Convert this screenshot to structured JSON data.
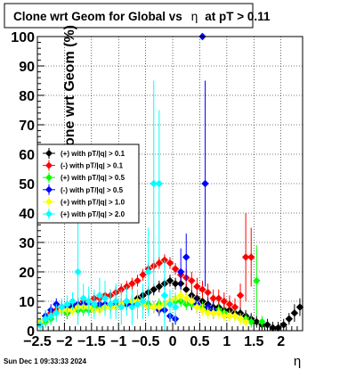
{
  "chart_data": {
    "type": "scatter",
    "title": "Clone wrt Geom for Global vs",
    "title_symbol": "η",
    "title_suffix": "at pT > 0.11",
    "xlabel": "η",
    "ylabel": "Clone wrt Geom (%)",
    "xlim": [
      -2.5,
      2.4
    ],
    "ylim": [
      0,
      100
    ],
    "x_ticks": [
      {
        "value": -2.5,
        "label": "−2.5"
      },
      {
        "value": -2,
        "label": "−2"
      },
      {
        "value": -1.5,
        "label": "−1.5"
      },
      {
        "value": -1,
        "label": "−1"
      },
      {
        "value": -0.5,
        "label": "−0.5"
      },
      {
        "value": 0,
        "label": "0"
      },
      {
        "value": 0.5,
        "label": "0.5"
      },
      {
        "value": 1,
        "label": "1"
      },
      {
        "value": 1.5,
        "label": "1.5"
      },
      {
        "value": 2,
        "label": "2"
      }
    ],
    "y_ticks": [
      {
        "value": 0,
        "label": "0"
      },
      {
        "value": 10,
        "label": "10"
      },
      {
        "value": 20,
        "label": "20"
      },
      {
        "value": 30,
        "label": "30"
      },
      {
        "value": 40,
        "label": "40"
      },
      {
        "value": 50,
        "label": "50"
      },
      {
        "value": 60,
        "label": "60"
      },
      {
        "value": 70,
        "label": "70"
      },
      {
        "value": 80,
        "label": "80"
      },
      {
        "value": 90,
        "label": "90"
      },
      {
        "value": 100,
        "label": "100"
      }
    ],
    "grid": true,
    "legend_position": "middle-left",
    "series": [
      {
        "name": "(+) with pT/|q| > 0.1",
        "color": "#000000",
        "points": [
          [
            -2.45,
            2,
            1.5
          ],
          [
            -2.35,
            4,
            2
          ],
          [
            -2.25,
            5,
            2
          ],
          [
            -2.15,
            7,
            2
          ],
          [
            -2.05,
            7,
            2
          ],
          [
            -1.95,
            6,
            2
          ],
          [
            -1.85,
            8,
            2
          ],
          [
            -1.75,
            7,
            2
          ],
          [
            -1.65,
            8,
            2
          ],
          [
            -1.55,
            8,
            2
          ],
          [
            -1.45,
            8,
            2
          ],
          [
            -1.35,
            8,
            2
          ],
          [
            -1.25,
            8,
            2
          ],
          [
            -1.15,
            8,
            2
          ],
          [
            -1.05,
            9,
            2
          ],
          [
            -0.95,
            9,
            2
          ],
          [
            -0.85,
            10,
            2
          ],
          [
            -0.75,
            10,
            2
          ],
          [
            -0.65,
            11,
            2
          ],
          [
            -0.55,
            12,
            2
          ],
          [
            -0.45,
            13,
            2
          ],
          [
            -0.35,
            14,
            2
          ],
          [
            -0.25,
            15,
            2
          ],
          [
            -0.15,
            16,
            2
          ],
          [
            -0.05,
            17,
            2
          ],
          [
            0.05,
            16,
            2
          ],
          [
            0.15,
            16,
            2
          ],
          [
            0.25,
            14,
            2
          ],
          [
            0.35,
            12,
            2
          ],
          [
            0.45,
            11,
            2
          ],
          [
            0.55,
            10,
            2
          ],
          [
            0.65,
            9,
            2
          ],
          [
            0.75,
            8,
            2
          ],
          [
            0.85,
            8,
            2
          ],
          [
            0.95,
            7,
            2
          ],
          [
            1.05,
            7,
            2
          ],
          [
            1.15,
            6,
            2
          ],
          [
            1.25,
            6,
            2
          ],
          [
            1.35,
            5,
            2
          ],
          [
            1.45,
            4,
            2
          ],
          [
            1.55,
            3,
            2
          ],
          [
            1.65,
            2,
            2
          ],
          [
            1.75,
            2,
            2
          ],
          [
            1.85,
            1,
            2
          ],
          [
            1.95,
            1,
            2
          ],
          [
            2.05,
            2,
            2
          ],
          [
            2.15,
            4,
            2
          ],
          [
            2.25,
            6,
            3
          ],
          [
            2.35,
            8,
            3
          ]
        ]
      },
      {
        "name": "(-) with pT/|q| > 0.1",
        "color": "#ff0000",
        "points": [
          [
            -2.45,
            3,
            2
          ],
          [
            -2.35,
            5,
            2
          ],
          [
            -2.25,
            6,
            2
          ],
          [
            -2.15,
            7,
            2
          ],
          [
            -2.05,
            8,
            2
          ],
          [
            -1.95,
            8,
            2
          ],
          [
            -1.85,
            9,
            2
          ],
          [
            -1.75,
            9,
            2
          ],
          [
            -1.65,
            10,
            2
          ],
          [
            -1.55,
            10,
            2
          ],
          [
            -1.45,
            11,
            2
          ],
          [
            -1.35,
            11,
            2
          ],
          [
            -1.25,
            12,
            2
          ],
          [
            -1.15,
            12,
            2
          ],
          [
            -1.05,
            13,
            2
          ],
          [
            -0.95,
            14,
            2
          ],
          [
            -0.85,
            15,
            2
          ],
          [
            -0.75,
            16,
            2
          ],
          [
            -0.65,
            17,
            2
          ],
          [
            -0.55,
            19,
            2
          ],
          [
            -0.45,
            21,
            2
          ],
          [
            -0.35,
            22,
            2
          ],
          [
            -0.25,
            23,
            2
          ],
          [
            -0.15,
            24,
            2
          ],
          [
            -0.05,
            23,
            2
          ],
          [
            0.05,
            21,
            2
          ],
          [
            0.15,
            19,
            2
          ],
          [
            0.25,
            18,
            3
          ],
          [
            0.35,
            17,
            3
          ],
          [
            0.45,
            15,
            3
          ],
          [
            0.55,
            14,
            3
          ],
          [
            0.65,
            13,
            3
          ],
          [
            0.75,
            11,
            3
          ],
          [
            0.85,
            11,
            3
          ],
          [
            0.95,
            10,
            3
          ],
          [
            1.05,
            9,
            3
          ],
          [
            1.15,
            8,
            3
          ],
          [
            1.25,
            12,
            4
          ],
          [
            1.35,
            25,
            15
          ],
          [
            1.45,
            25,
            10
          ]
        ]
      },
      {
        "name": "(+) with pT/|q| > 0.5",
        "color": "#00ff00",
        "points": [
          [
            -2.45,
            2,
            2
          ],
          [
            -2.35,
            3,
            2
          ],
          [
            -2.25,
            4,
            2
          ],
          [
            -2.15,
            6,
            2
          ],
          [
            -2.05,
            7,
            2
          ],
          [
            -1.95,
            6,
            2
          ],
          [
            -1.85,
            7,
            2
          ],
          [
            -1.75,
            7,
            2
          ],
          [
            -1.65,
            7,
            2
          ],
          [
            -1.55,
            7,
            2
          ],
          [
            -1.45,
            8,
            2
          ],
          [
            -1.35,
            8,
            2
          ],
          [
            -1.25,
            8,
            2
          ],
          [
            -1.15,
            8,
            2
          ],
          [
            -1.05,
            9,
            2
          ],
          [
            -0.95,
            9,
            2
          ],
          [
            -0.85,
            9,
            2
          ],
          [
            -0.75,
            10,
            2
          ],
          [
            -0.65,
            9,
            2
          ],
          [
            -0.55,
            9,
            2
          ],
          [
            -0.45,
            9,
            2
          ],
          [
            -0.35,
            8,
            2
          ],
          [
            -0.25,
            9,
            2
          ],
          [
            -0.15,
            9,
            2
          ],
          [
            -0.05,
            10,
            2
          ],
          [
            0.05,
            10,
            2
          ],
          [
            0.15,
            10,
            2
          ],
          [
            0.25,
            9,
            2
          ],
          [
            0.35,
            9,
            2
          ],
          [
            0.45,
            8,
            2
          ],
          [
            0.55,
            8,
            2
          ],
          [
            0.65,
            7,
            2
          ],
          [
            0.75,
            6,
            2
          ],
          [
            0.85,
            7,
            2
          ],
          [
            0.95,
            6,
            2
          ],
          [
            1.05,
            5,
            2
          ],
          [
            1.15,
            5,
            2
          ],
          [
            1.25,
            4,
            2
          ],
          [
            1.35,
            4,
            2
          ],
          [
            1.45,
            3,
            2
          ],
          [
            1.55,
            17,
            12
          ],
          [
            1.65,
            3,
            2
          ]
        ]
      },
      {
        "name": "(-) with pT/|q| > 0.5",
        "color": "#0000ff",
        "points": [
          [
            -2.45,
            3,
            2
          ],
          [
            -2.35,
            5,
            2
          ],
          [
            -2.25,
            7,
            2
          ],
          [
            -2.15,
            9,
            2
          ],
          [
            -2.05,
            8,
            2
          ],
          [
            -1.95,
            8,
            2
          ],
          [
            -1.85,
            9,
            2
          ],
          [
            -1.75,
            9,
            2
          ],
          [
            -1.65,
            9,
            2
          ],
          [
            -1.55,
            9,
            2
          ],
          [
            -1.45,
            9,
            2
          ],
          [
            -1.35,
            9,
            2
          ],
          [
            -1.25,
            9,
            2
          ],
          [
            -1.15,
            9,
            2
          ],
          [
            -1.05,
            9,
            2
          ],
          [
            -0.95,
            9,
            2
          ],
          [
            -0.85,
            9,
            2
          ],
          [
            -0.75,
            9,
            2
          ],
          [
            -0.65,
            9,
            2
          ],
          [
            -0.55,
            9,
            2
          ],
          [
            -0.45,
            8,
            2
          ],
          [
            -0.35,
            8,
            2
          ],
          [
            -0.25,
            7,
            2
          ],
          [
            -0.15,
            7,
            2
          ],
          [
            -0.05,
            5,
            2
          ],
          [
            0.05,
            4,
            2
          ],
          [
            0.15,
            20,
            8
          ],
          [
            0.25,
            25,
            8
          ],
          [
            0.35,
            10,
            3
          ],
          [
            0.45,
            9,
            3
          ],
          [
            0.55,
            100,
            0
          ],
          [
            0.6,
            50,
            35
          ],
          [
            0.65,
            8,
            3
          ],
          [
            0.75,
            7,
            3
          ]
        ]
      },
      {
        "name": "(+) with pT/|q| > 1.0",
        "color": "#ffff00",
        "points": [
          [
            -2.45,
            3,
            2
          ],
          [
            -2.35,
            4,
            2
          ],
          [
            -2.25,
            5,
            2
          ],
          [
            -2.15,
            6,
            2
          ],
          [
            -2.05,
            7,
            2
          ],
          [
            -1.95,
            7,
            2
          ],
          [
            -1.85,
            7,
            2
          ],
          [
            -1.75,
            8,
            2
          ],
          [
            -1.65,
            8,
            2
          ],
          [
            -1.55,
            8,
            2
          ],
          [
            -1.45,
            7,
            2
          ],
          [
            -1.35,
            7,
            2
          ],
          [
            -1.25,
            8,
            2
          ],
          [
            -1.15,
            8,
            2
          ],
          [
            -1.05,
            8,
            2
          ],
          [
            -0.95,
            9,
            2
          ],
          [
            -0.85,
            10,
            2
          ],
          [
            -0.75,
            10,
            2
          ],
          [
            -0.65,
            10,
            2
          ],
          [
            -0.55,
            9,
            2
          ],
          [
            -0.45,
            8,
            2
          ],
          [
            -0.35,
            8,
            2
          ],
          [
            -0.25,
            8,
            2
          ],
          [
            -0.15,
            9,
            2
          ],
          [
            -0.05,
            10,
            2
          ],
          [
            0.05,
            11,
            2
          ],
          [
            0.15,
            12,
            2
          ],
          [
            0.25,
            11,
            2
          ],
          [
            0.35,
            10,
            2
          ],
          [
            0.45,
            8,
            2
          ],
          [
            0.55,
            7,
            2
          ],
          [
            0.65,
            6,
            2
          ],
          [
            0.75,
            6,
            2
          ],
          [
            0.85,
            6,
            2
          ],
          [
            0.95,
            5,
            2
          ],
          [
            1.05,
            5,
            2
          ],
          [
            1.15,
            5,
            2
          ],
          [
            1.25,
            4,
            2
          ],
          [
            1.35,
            3,
            2
          ]
        ]
      },
      {
        "name": "(+) with pT/|q| > 2.0",
        "color": "#00ffff",
        "points": [
          [
            -2.45,
            2,
            2
          ],
          [
            -2.35,
            4,
            3
          ],
          [
            -2.25,
            5,
            3
          ],
          [
            -2.15,
            6,
            3
          ],
          [
            -2.05,
            8,
            3
          ],
          [
            -1.95,
            9,
            3
          ],
          [
            -1.85,
            10,
            3
          ],
          [
            -1.75,
            20,
            18
          ],
          [
            -1.65,
            11,
            5
          ],
          [
            -1.55,
            10,
            5
          ],
          [
            -1.45,
            9,
            5
          ],
          [
            -1.35,
            12,
            6
          ],
          [
            -1.25,
            11,
            6
          ],
          [
            -1.15,
            9,
            5
          ],
          [
            -1.05,
            10,
            6
          ],
          [
            -0.95,
            8,
            6
          ],
          [
            -0.85,
            10,
            5
          ],
          [
            -0.75,
            8,
            6
          ],
          [
            -0.65,
            9,
            5
          ],
          [
            -0.55,
            10,
            6
          ],
          [
            -0.45,
            20,
            15
          ],
          [
            -0.35,
            50,
            35
          ],
          [
            -0.25,
            50,
            25
          ],
          [
            -0.15,
            12,
            12
          ],
          [
            -0.05,
            9,
            5
          ],
          [
            0.05,
            8,
            5
          ]
        ]
      }
    ]
  },
  "footer": {
    "timestamp": "Sun Dec  1 09:33:33 2024"
  }
}
